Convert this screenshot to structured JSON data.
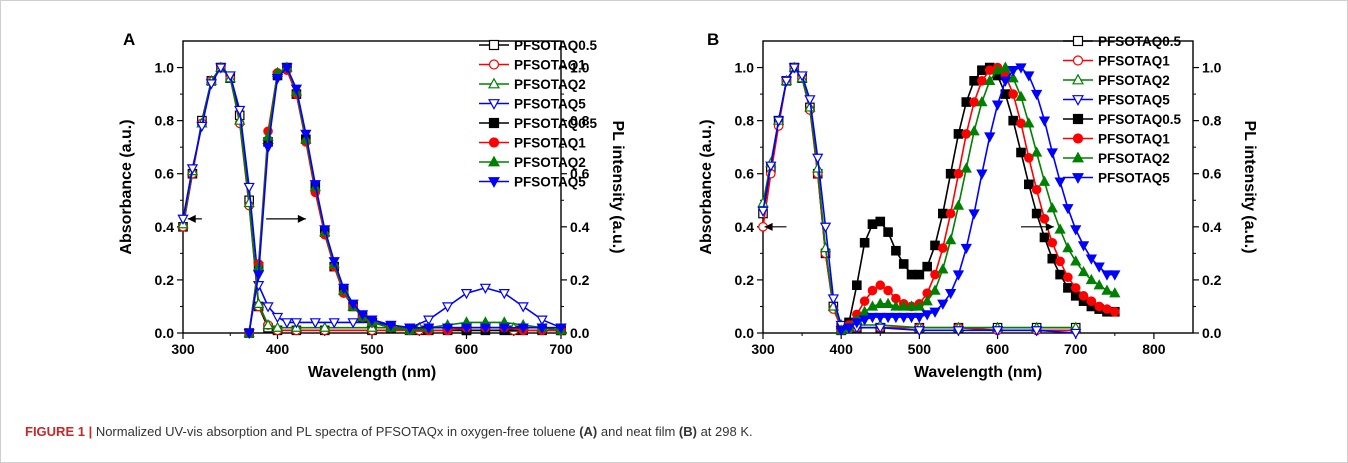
{
  "caption": {
    "label": "FIGURE 1 |",
    "text1": " Normalized UV-vis absorption and PL spectra of PFSOTAQx in oxygen-free toluene ",
    "tagA": "(A)",
    "text2": " and neat film ",
    "tagB": "(B)",
    "text3": " at 298 K."
  },
  "chart_data": [
    {
      "type": "line",
      "panel": "A",
      "xlabel": "Wavelength (nm)",
      "ylabel": "Absorbance (a.u.)",
      "y2label": "PL intensity (a.u.)",
      "xlim": [
        300,
        700
      ],
      "ylim": [
        0,
        1.1
      ],
      "y2lim": [
        0,
        1.1
      ],
      "xticks": [
        "300",
        "400",
        "500",
        "600",
        "700"
      ],
      "yticks": [
        "0.0",
        "0.2",
        "0.4",
        "0.6",
        "0.8",
        "1.0"
      ],
      "y2ticks": [
        "0.0",
        "0.2",
        "0.4",
        "0.6",
        "0.8",
        "1.0"
      ],
      "legend_position": "top-right",
      "arrows": [
        {
          "x_from": 320,
          "x_to": 305,
          "y": 0.43
        },
        {
          "x_from": 388,
          "x_to": 430,
          "y": 0.43
        }
      ],
      "series": [
        {
          "name": "PFSOTAQ0.5",
          "axis": "left",
          "color": "#000000",
          "marker": "square",
          "filled": false,
          "x": [
            300,
            310,
            320,
            330,
            340,
            350,
            360,
            370,
            380,
            390,
            400,
            420,
            450,
            500,
            550,
            600,
            650,
            700
          ],
          "y": [
            0.4,
            0.6,
            0.8,
            0.95,
            1.0,
            0.96,
            0.82,
            0.5,
            0.1,
            0.02,
            0.01,
            0.01,
            0.01,
            0.01,
            0.01,
            0.01,
            0.01,
            0.01
          ]
        },
        {
          "name": "PFSOTAQ1",
          "axis": "left",
          "color": "#ff0000",
          "marker": "circle",
          "filled": false,
          "x": [
            300,
            310,
            320,
            330,
            340,
            350,
            360,
            370,
            380,
            390,
            400,
            420,
            450,
            500,
            550,
            600,
            650,
            700
          ],
          "y": [
            0.4,
            0.6,
            0.79,
            0.95,
            1.0,
            0.96,
            0.79,
            0.48,
            0.1,
            0.03,
            0.01,
            0.01,
            0.01,
            0.01,
            0.01,
            0.01,
            0.01,
            0.01
          ]
        },
        {
          "name": "PFSOTAQ2",
          "axis": "left",
          "color": "#008000",
          "marker": "triangle-up",
          "filled": false,
          "x": [
            300,
            310,
            320,
            330,
            340,
            350,
            360,
            370,
            380,
            390,
            400,
            420,
            450,
            500,
            550,
            600,
            650,
            700
          ],
          "y": [
            0.41,
            0.61,
            0.79,
            0.95,
            1.0,
            0.96,
            0.8,
            0.49,
            0.11,
            0.03,
            0.02,
            0.02,
            0.02,
            0.02,
            0.02,
            0.02,
            0.02,
            0.02
          ]
        },
        {
          "name": "PFSOTAQ5",
          "axis": "left",
          "color": "#0000ff",
          "marker": "triangle-down",
          "filled": false,
          "x": [
            300,
            310,
            320,
            330,
            340,
            350,
            360,
            370,
            380,
            390,
            400,
            410,
            420,
            440,
            460,
            480,
            500,
            520,
            540,
            560,
            580,
            600,
            620,
            640,
            660,
            680,
            700
          ],
          "y": [
            0.43,
            0.62,
            0.78,
            0.94,
            1.0,
            0.97,
            0.84,
            0.55,
            0.18,
            0.1,
            0.06,
            0.04,
            0.04,
            0.04,
            0.04,
            0.04,
            0.04,
            0.03,
            0.02,
            0.05,
            0.1,
            0.15,
            0.17,
            0.15,
            0.1,
            0.05,
            0.02
          ]
        },
        {
          "name": "PFSOTAQ0.5",
          "axis": "right",
          "color": "#000000",
          "marker": "square",
          "filled": true,
          "x": [
            370,
            380,
            390,
            400,
            410,
            420,
            430,
            440,
            450,
            460,
            470,
            480,
            490,
            500,
            520,
            540,
            560,
            580,
            600,
            620,
            640,
            660,
            680,
            700
          ],
          "y": [
            0.0,
            0.25,
            0.72,
            0.97,
            1.0,
            0.9,
            0.73,
            0.55,
            0.38,
            0.25,
            0.16,
            0.1,
            0.06,
            0.04,
            0.02,
            0.01,
            0.01,
            0.01,
            0.01,
            0.01,
            0.01,
            0.01,
            0.01,
            0.01
          ]
        },
        {
          "name": "PFSOTAQ1",
          "axis": "right",
          "color": "#ff0000",
          "marker": "circle",
          "filled": true,
          "x": [
            370,
            380,
            390,
            400,
            410,
            420,
            430,
            440,
            450,
            460,
            470,
            480,
            490,
            500,
            520,
            540,
            560,
            580,
            600,
            620,
            640,
            660,
            680,
            700
          ],
          "y": [
            0.0,
            0.26,
            0.76,
            0.98,
            0.99,
            0.9,
            0.72,
            0.53,
            0.37,
            0.25,
            0.15,
            0.1,
            0.06,
            0.04,
            0.02,
            0.01,
            0.01,
            0.01,
            0.02,
            0.02,
            0.02,
            0.01,
            0.01,
            0.01
          ]
        },
        {
          "name": "PFSOTAQ2",
          "axis": "right",
          "color": "#008000",
          "marker": "triangle-up",
          "filled": true,
          "x": [
            370,
            380,
            390,
            400,
            410,
            420,
            430,
            440,
            450,
            460,
            470,
            480,
            490,
            500,
            520,
            540,
            560,
            580,
            600,
            620,
            640,
            660,
            680,
            700
          ],
          "y": [
            0.0,
            0.25,
            0.74,
            0.98,
            1.0,
            0.91,
            0.73,
            0.55,
            0.38,
            0.26,
            0.16,
            0.1,
            0.06,
            0.04,
            0.02,
            0.01,
            0.02,
            0.03,
            0.04,
            0.04,
            0.04,
            0.03,
            0.02,
            0.01
          ]
        },
        {
          "name": "PFSOTAQ5",
          "axis": "right",
          "color": "#0000ff",
          "marker": "triangle-down",
          "filled": true,
          "x": [
            370,
            380,
            390,
            400,
            410,
            420,
            430,
            440,
            450,
            460,
            470,
            480,
            490,
            500,
            520,
            540,
            560,
            580,
            600,
            620,
            640,
            660,
            680,
            700
          ],
          "y": [
            0.0,
            0.22,
            0.7,
            0.96,
            1.0,
            0.92,
            0.75,
            0.56,
            0.39,
            0.27,
            0.17,
            0.11,
            0.07,
            0.05,
            0.03,
            0.02,
            0.02,
            0.02,
            0.02,
            0.02,
            0.02,
            0.02,
            0.02,
            0.02
          ]
        }
      ]
    },
    {
      "type": "line",
      "panel": "B",
      "xlabel": "Wavelength (nm)",
      "ylabel": "Absorbance (a.u.)",
      "y2label": "PL intensity (a.u.)",
      "xlim": [
        300,
        850
      ],
      "ylim": [
        0,
        1.1
      ],
      "y2lim": [
        0,
        1.1
      ],
      "xticks": [
        "300",
        "400",
        "500",
        "600",
        "700",
        "800"
      ],
      "yticks": [
        "0.0",
        "0.2",
        "0.4",
        "0.6",
        "0.8",
        "1.0"
      ],
      "y2ticks": [
        "0.0",
        "0.2",
        "0.4",
        "0.6",
        "0.8",
        "1.0"
      ],
      "legend_position": "top-right",
      "arrows": [
        {
          "x_from": 330,
          "x_to": 302,
          "y": 0.4
        },
        {
          "x_from": 630,
          "x_to": 672,
          "y": 0.4
        }
      ],
      "series": [
        {
          "name": "PFSOTAQ0.5",
          "axis": "left",
          "color": "#000000",
          "marker": "square",
          "filled": false,
          "x": [
            300,
            310,
            320,
            330,
            340,
            350,
            360,
            370,
            380,
            390,
            400,
            420,
            450,
            500,
            550,
            600,
            650,
            700
          ],
          "y": [
            0.45,
            0.62,
            0.8,
            0.95,
            1.0,
            0.96,
            0.85,
            0.6,
            0.3,
            0.1,
            0.02,
            0.02,
            0.02,
            0.02,
            0.02,
            0.02,
            0.02,
            0.02
          ]
        },
        {
          "name": "PFSOTAQ1",
          "axis": "left",
          "color": "#ff0000",
          "marker": "circle",
          "filled": false,
          "x": [
            300,
            310,
            320,
            330,
            340,
            350,
            360,
            370,
            380,
            390,
            400,
            420,
            450,
            500,
            550,
            600,
            650,
            700
          ],
          "y": [
            0.4,
            0.6,
            0.78,
            0.95,
            1.0,
            0.96,
            0.84,
            0.6,
            0.3,
            0.09,
            0.02,
            0.02,
            0.02,
            0.02,
            0.02,
            0.01,
            0.01,
            0.01
          ]
        },
        {
          "name": "PFSOTAQ2",
          "axis": "left",
          "color": "#008000",
          "marker": "triangle-up",
          "filled": false,
          "x": [
            300,
            310,
            320,
            330,
            340,
            350,
            360,
            370,
            380,
            390,
            400,
            420,
            450,
            500,
            550,
            600,
            650,
            700
          ],
          "y": [
            0.49,
            0.64,
            0.8,
            0.95,
            1.0,
            0.96,
            0.85,
            0.62,
            0.32,
            0.1,
            0.03,
            0.03,
            0.03,
            0.02,
            0.02,
            0.02,
            0.02,
            0.02
          ]
        },
        {
          "name": "PFSOTAQ5",
          "axis": "left",
          "color": "#0000ff",
          "marker": "triangle-down",
          "filled": false,
          "x": [
            300,
            310,
            320,
            330,
            340,
            350,
            360,
            370,
            380,
            390,
            400,
            420,
            450,
            500,
            550,
            600,
            650,
            700
          ],
          "y": [
            0.46,
            0.63,
            0.8,
            0.95,
            1.0,
            0.97,
            0.88,
            0.66,
            0.4,
            0.13,
            0.03,
            0.02,
            0.02,
            0.01,
            0.01,
            0.01,
            0.01,
            0.0
          ]
        },
        {
          "name": "PFSOTAQ0.5",
          "axis": "right",
          "color": "#000000",
          "marker": "square",
          "filled": true,
          "x": [
            400,
            410,
            420,
            430,
            440,
            450,
            460,
            470,
            480,
            490,
            500,
            510,
            520,
            530,
            540,
            550,
            560,
            570,
            580,
            590,
            600,
            610,
            620,
            630,
            640,
            650,
            660,
            670,
            680,
            690,
            700,
            710,
            720,
            730,
            740,
            750
          ],
          "y": [
            0.01,
            0.04,
            0.18,
            0.34,
            0.41,
            0.42,
            0.38,
            0.31,
            0.26,
            0.22,
            0.22,
            0.25,
            0.33,
            0.45,
            0.6,
            0.75,
            0.87,
            0.95,
            0.99,
            1.0,
            0.97,
            0.9,
            0.8,
            0.68,
            0.56,
            0.45,
            0.36,
            0.28,
            0.22,
            0.17,
            0.14,
            0.12,
            0.1,
            0.09,
            0.08,
            0.08
          ]
        },
        {
          "name": "PFSOTAQ1",
          "axis": "right",
          "color": "#ff0000",
          "marker": "circle",
          "filled": true,
          "x": [
            400,
            410,
            420,
            430,
            440,
            450,
            460,
            470,
            480,
            490,
            500,
            510,
            520,
            530,
            540,
            550,
            560,
            570,
            580,
            590,
            600,
            610,
            620,
            630,
            640,
            650,
            660,
            670,
            680,
            690,
            700,
            710,
            720,
            730,
            740,
            750
          ],
          "y": [
            0.01,
            0.03,
            0.07,
            0.12,
            0.16,
            0.18,
            0.16,
            0.13,
            0.11,
            0.1,
            0.11,
            0.15,
            0.22,
            0.32,
            0.45,
            0.6,
            0.75,
            0.87,
            0.95,
            0.99,
            1.0,
            0.97,
            0.9,
            0.79,
            0.66,
            0.54,
            0.43,
            0.34,
            0.27,
            0.21,
            0.17,
            0.14,
            0.12,
            0.1,
            0.09,
            0.08
          ]
        },
        {
          "name": "PFSOTAQ2",
          "axis": "right",
          "color": "#008000",
          "marker": "triangle-up",
          "filled": true,
          "x": [
            400,
            410,
            420,
            430,
            440,
            450,
            460,
            470,
            480,
            490,
            500,
            510,
            520,
            530,
            540,
            550,
            560,
            570,
            580,
            590,
            600,
            610,
            620,
            630,
            640,
            650,
            660,
            670,
            680,
            690,
            700,
            710,
            720,
            730,
            740,
            750
          ],
          "y": [
            0.01,
            0.02,
            0.05,
            0.08,
            0.1,
            0.11,
            0.11,
            0.1,
            0.1,
            0.1,
            0.1,
            0.12,
            0.16,
            0.24,
            0.35,
            0.48,
            0.62,
            0.76,
            0.87,
            0.95,
            0.99,
            1.0,
            0.96,
            0.89,
            0.79,
            0.68,
            0.57,
            0.47,
            0.39,
            0.32,
            0.27,
            0.23,
            0.2,
            0.18,
            0.16,
            0.15
          ]
        },
        {
          "name": "PFSOTAQ5",
          "axis": "right",
          "color": "#0000ff",
          "marker": "triangle-down",
          "filled": true,
          "x": [
            400,
            410,
            420,
            430,
            440,
            450,
            460,
            470,
            480,
            490,
            500,
            510,
            520,
            530,
            540,
            550,
            560,
            570,
            580,
            590,
            600,
            610,
            620,
            630,
            640,
            650,
            660,
            670,
            680,
            690,
            700,
            710,
            720,
            730,
            740,
            750
          ],
          "y": [
            0.01,
            0.02,
            0.04,
            0.05,
            0.06,
            0.06,
            0.06,
            0.06,
            0.06,
            0.06,
            0.06,
            0.07,
            0.08,
            0.11,
            0.15,
            0.22,
            0.32,
            0.45,
            0.6,
            0.74,
            0.86,
            0.95,
            0.99,
            1.0,
            0.97,
            0.9,
            0.8,
            0.68,
            0.57,
            0.47,
            0.39,
            0.33,
            0.28,
            0.25,
            0.22,
            0.22
          ]
        }
      ]
    }
  ]
}
